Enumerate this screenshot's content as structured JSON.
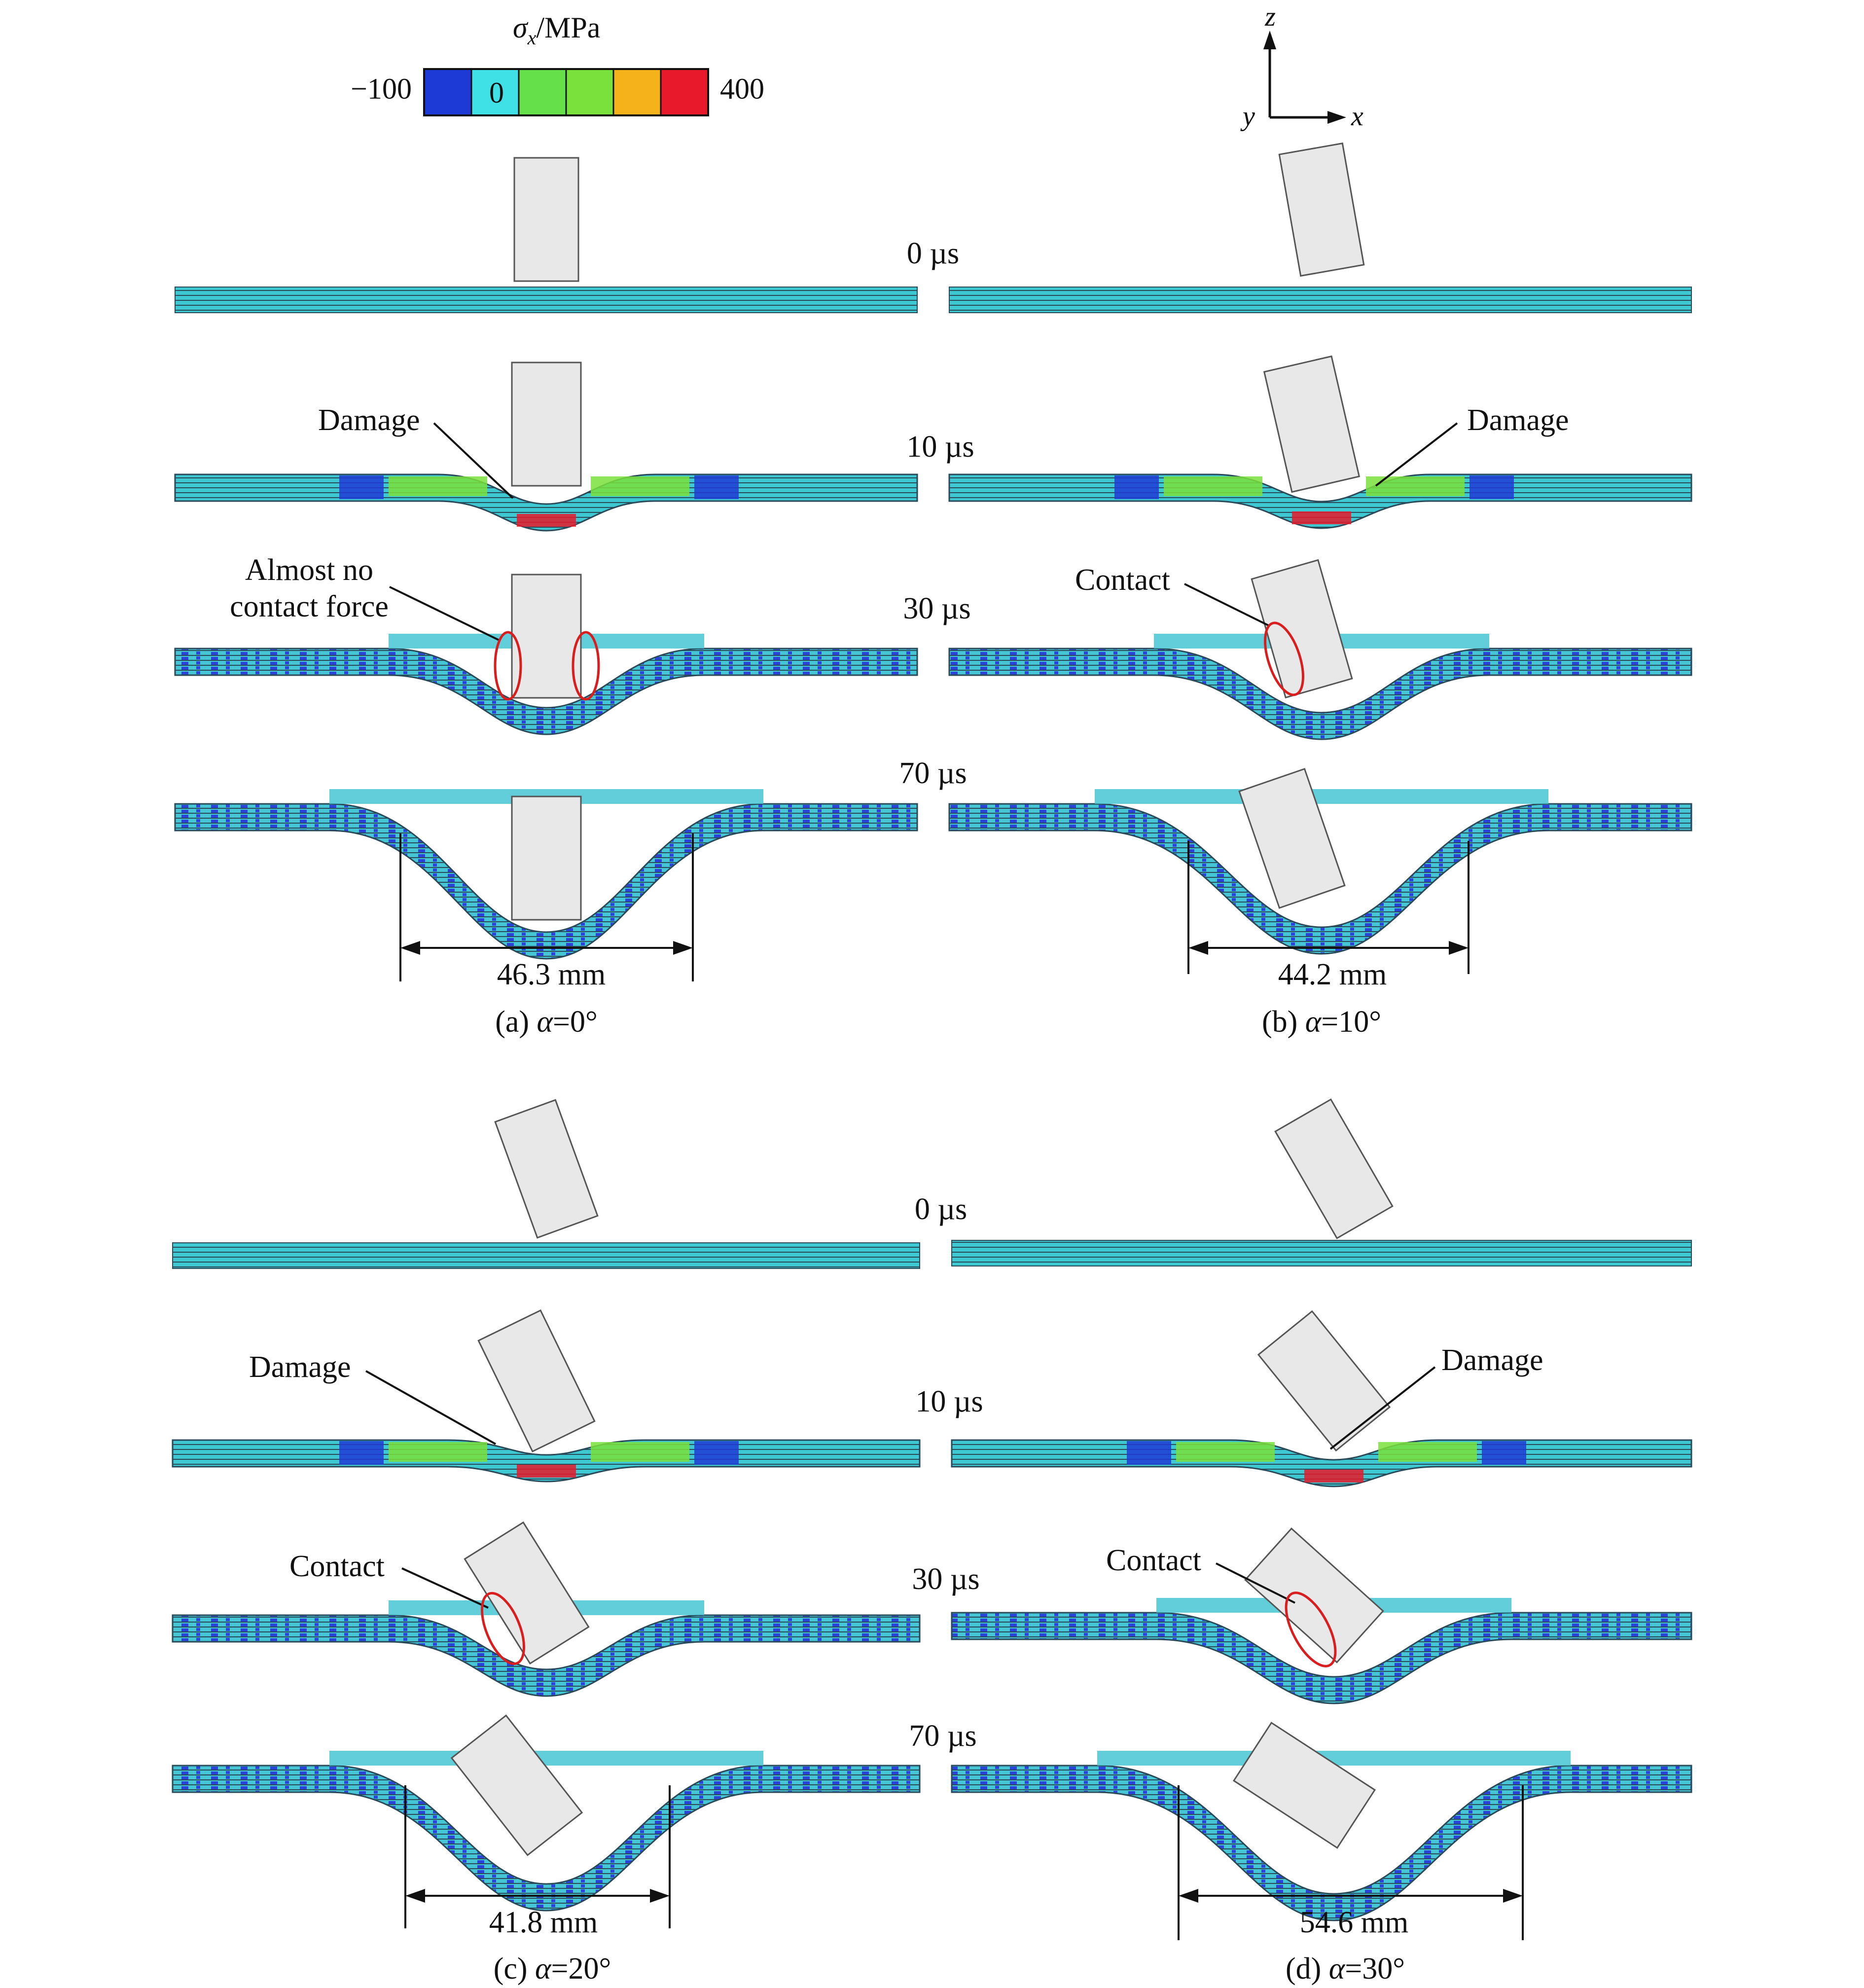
{
  "colorbar": {
    "title_symbol": "σ",
    "title_sub": "x",
    "title_rest": "/MPa",
    "min_label": "−100",
    "zero_label": "0",
    "max_label": "400",
    "colors": [
      "#1e3ad6",
      "#3fe0e6",
      "#66e04a",
      "#7ae03c",
      "#f5b21a",
      "#e8192a"
    ]
  },
  "axes": {
    "z": "z",
    "x": "x",
    "y": "y"
  },
  "times": [
    "0 µs",
    "10 µs",
    "30 µs",
    "70 µs"
  ],
  "panels": [
    {
      "caption_prefix": "(a) ",
      "caption_symbol": "α",
      "caption_rest": "=0°",
      "angle_deg": 0,
      "dimension": "46.3 mm",
      "annotations": {
        "damage": "Damage",
        "contact_line1": "Almost no",
        "contact_line2": "contact force"
      }
    },
    {
      "caption_prefix": "(b) ",
      "caption_symbol": "α",
      "caption_rest": "=10°",
      "angle_deg": 10,
      "dimension": "44.2 mm",
      "annotations": {
        "damage": "Damage",
        "contact": "Contact"
      }
    },
    {
      "caption_prefix": "(c) ",
      "caption_symbol": "α",
      "caption_rest": "=20°",
      "angle_deg": 20,
      "dimension": "41.8 mm",
      "annotations": {
        "damage": "Damage",
        "contact": "Contact"
      }
    },
    {
      "caption_prefix": "(d) ",
      "caption_symbol": "α",
      "caption_rest": "=30°",
      "angle_deg": 30,
      "dimension": "54.6 mm",
      "annotations": {
        "damage": "Damage",
        "contact": "Contact"
      }
    }
  ],
  "colors": {
    "plate": "#3ec8d2",
    "plate_line": "#2a4a5a",
    "projectile": "#e8e8e8",
    "contact_ring": "#d81e1e"
  }
}
